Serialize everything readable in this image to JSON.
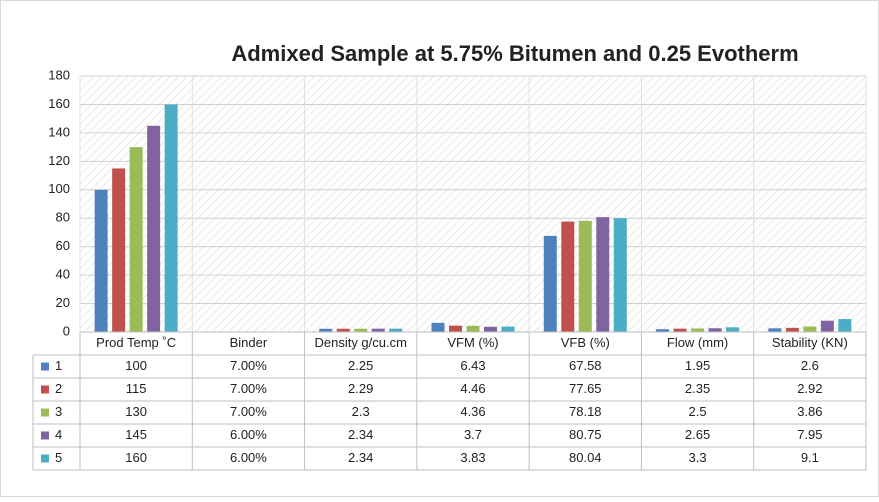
{
  "chart_data": {
    "type": "bar",
    "title": "Admixed Sample at 5.75% Bitumen and 0.25 Evotherm",
    "categories": [
      "Prod Temp ˚C",
      "Binder",
      "Density g/cu.cm",
      "VFM (%)",
      "VFB (%)",
      "Flow  (mm)",
      "Stability (KN)"
    ],
    "series": [
      {
        "name": "1",
        "color": "#4f81bd",
        "values": [
          100,
          0.07,
          2.25,
          6.43,
          67.58,
          1.95,
          2.6
        ],
        "value_labels": [
          "100",
          "7.00%",
          "2.25",
          "6.43",
          "67.58",
          "1.95",
          "2.6"
        ]
      },
      {
        "name": "2",
        "color": "#c0504d",
        "values": [
          115,
          0.07,
          2.29,
          4.46,
          77.65,
          2.35,
          2.92
        ],
        "value_labels": [
          "115",
          "7.00%",
          "2.29",
          "4.46",
          "77.65",
          "2.35",
          "2.92"
        ]
      },
      {
        "name": "3",
        "color": "#9bbb59",
        "values": [
          130,
          0.07,
          2.3,
          4.36,
          78.18,
          2.5,
          3.86
        ],
        "value_labels": [
          "130",
          "7.00%",
          "2.3",
          "4.36",
          "78.18",
          "2.5",
          "3.86"
        ]
      },
      {
        "name": "4",
        "color": "#8064a2",
        "values": [
          145,
          0.06,
          2.34,
          3.7,
          80.75,
          2.65,
          7.95
        ],
        "value_labels": [
          "145",
          "6.00%",
          "2.34",
          "3.7",
          "80.75",
          "2.65",
          "7.95"
        ]
      },
      {
        "name": "5",
        "color": "#4bacc6",
        "values": [
          160,
          0.06,
          2.34,
          3.83,
          80.04,
          3.3,
          9.1
        ],
        "value_labels": [
          "160",
          "6.00%",
          "2.34",
          "3.83",
          "80.04",
          "3.3",
          "9.1"
        ]
      }
    ],
    "ylim": [
      0,
      180
    ],
    "yticks": [
      0,
      20,
      40,
      60,
      80,
      100,
      120,
      140,
      160,
      180
    ],
    "grid": true
  }
}
